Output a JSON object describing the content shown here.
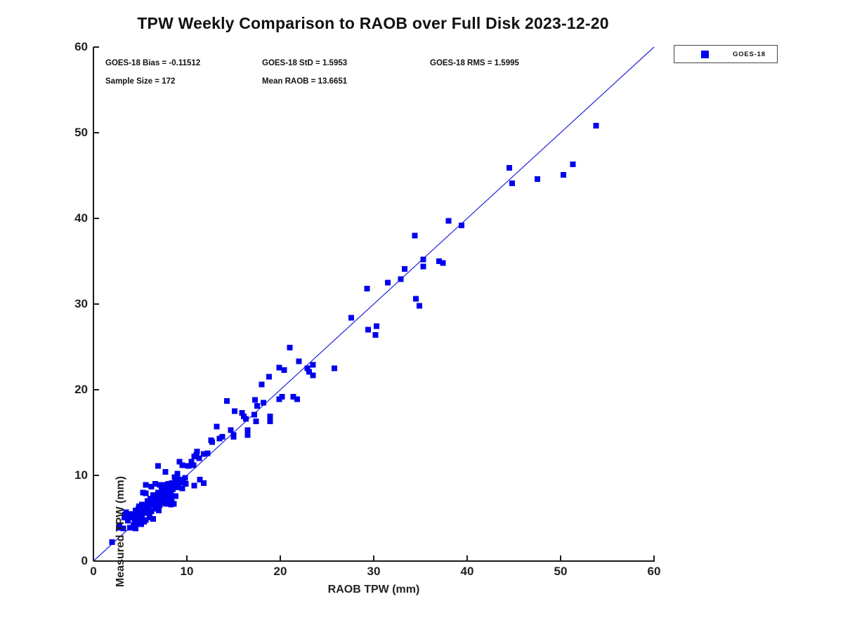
{
  "title": "TPW Weekly Comparison to RAOB over Full Disk 2023-12-20",
  "stats": {
    "bias": "GOES-18 Bias = -0.11512",
    "std": "GOES-18 StD = 1.5953",
    "rms": "GOES-18 RMS = 1.5995",
    "sample_size": "Sample Size = 172",
    "mean_raob": "Mean RAOB = 13.6651"
  },
  "legend": {
    "label": "GOES-18",
    "marker_color": "#0000ee"
  },
  "colors": {
    "marker": "#0000ee",
    "reference_line": "#2222dd",
    "axis": "#1a1a1a"
  },
  "chart_data": {
    "type": "scatter",
    "title": "TPW Weekly Comparison to RAOB over Full Disk 2023-12-20",
    "xlabel": "RAOB TPW (mm)",
    "ylabel": "Measured TPW (mm)",
    "xlim": [
      0,
      60
    ],
    "ylim": [
      0,
      60
    ],
    "xticks": [
      0,
      10,
      20,
      30,
      40,
      50,
      60
    ],
    "yticks": [
      0,
      10,
      20,
      30,
      40,
      50,
      60
    ],
    "grid": false,
    "legend_position": "outside-top-right",
    "annotations": [
      "GOES-18 Bias = -0.11512",
      "GOES-18 StD = 1.5953",
      "GOES-18 RMS = 1.5995",
      "Sample Size = 172",
      "Mean RAOB = 13.6651"
    ],
    "reference_line": {
      "label": "y = x",
      "from": [
        0,
        0
      ],
      "to": [
        60,
        60
      ],
      "color": "#2222dd"
    },
    "series": [
      {
        "name": "GOES-18",
        "marker": "filled-square",
        "color": "#0000ee",
        "sample_size": 172,
        "points": [
          [
            53.8,
            50.8
          ],
          [
            44.5,
            45.9
          ],
          [
            44.8,
            44.1
          ],
          [
            47.5,
            44.6
          ],
          [
            50.3,
            45.1
          ],
          [
            51.3,
            46.3
          ],
          [
            38.0,
            39.7
          ],
          [
            39.4,
            39.2
          ],
          [
            34.4,
            38.0
          ],
          [
            35.3,
            35.2
          ],
          [
            35.3,
            34.4
          ],
          [
            37.0,
            35.0
          ],
          [
            37.4,
            34.8
          ],
          [
            33.3,
            34.1
          ],
          [
            32.9,
            32.9
          ],
          [
            31.5,
            32.5
          ],
          [
            29.3,
            31.8
          ],
          [
            34.5,
            30.6
          ],
          [
            34.9,
            29.8
          ],
          [
            27.6,
            28.4
          ],
          [
            29.4,
            27.0
          ],
          [
            30.3,
            27.4
          ],
          [
            30.2,
            26.4
          ],
          [
            21.0,
            24.9
          ],
          [
            22.0,
            23.3
          ],
          [
            23.5,
            22.9
          ],
          [
            19.9,
            22.6
          ],
          [
            20.4,
            22.3
          ],
          [
            22.9,
            22.5
          ],
          [
            23.1,
            22.1
          ],
          [
            23.5,
            21.7
          ],
          [
            25.8,
            22.5
          ],
          [
            18.8,
            21.5
          ],
          [
            18.0,
            20.6
          ],
          [
            14.3,
            18.7
          ],
          [
            17.3,
            18.8
          ],
          [
            17.5,
            18.1
          ],
          [
            18.2,
            18.5
          ],
          [
            19.9,
            18.9
          ],
          [
            20.2,
            19.2
          ],
          [
            21.4,
            19.2
          ],
          [
            21.8,
            18.9
          ],
          [
            15.1,
            17.5
          ],
          [
            15.9,
            17.3
          ],
          [
            16.1,
            16.9
          ],
          [
            16.3,
            16.6
          ],
          [
            17.2,
            17.1
          ],
          [
            17.4,
            16.3
          ],
          [
            18.9,
            16.9
          ],
          [
            18.9,
            16.3
          ],
          [
            13.2,
            15.7
          ],
          [
            14.7,
            15.3
          ],
          [
            15.0,
            14.7
          ],
          [
            16.5,
            15.3
          ],
          [
            16.5,
            14.7
          ],
          [
            15.0,
            14.5
          ],
          [
            12.6,
            14.1
          ],
          [
            13.5,
            14.3
          ],
          [
            13.8,
            14.5
          ],
          [
            12.7,
            13.9
          ],
          [
            12.2,
            12.6
          ],
          [
            10.8,
            12.2
          ],
          [
            11.1,
            12.8
          ],
          [
            11.3,
            12.0
          ],
          [
            11.8,
            12.5
          ],
          [
            11.0,
            12.4
          ],
          [
            10.1,
            11.1
          ],
          [
            10.7,
            11.2
          ],
          [
            9.5,
            11.2
          ],
          [
            9.2,
            11.6
          ],
          [
            10.5,
            11.6
          ],
          [
            10.2,
            11.1
          ],
          [
            6.9,
            11.1
          ],
          [
            7.7,
            10.4
          ],
          [
            11.4,
            9.5
          ],
          [
            11.8,
            9.1
          ],
          [
            10.8,
            8.8
          ],
          [
            9.0,
            9.9
          ],
          [
            9.3,
            9.5
          ],
          [
            9.6,
            9.2
          ],
          [
            9.8,
            9.7
          ],
          [
            9.9,
            9.0
          ],
          [
            9.5,
            8.5
          ],
          [
            8.8,
            9.4
          ],
          [
            8.4,
            9.1
          ],
          [
            8.7,
            9.8
          ],
          [
            9.0,
            10.2
          ],
          [
            8.0,
            9.0
          ],
          [
            5.6,
            8.9
          ],
          [
            6.2,
            8.7
          ],
          [
            6.6,
            9.0
          ],
          [
            7.1,
            8.9
          ],
          [
            7.6,
            8.9
          ],
          [
            8.1,
            8.8
          ],
          [
            8.6,
            8.9
          ],
          [
            7.3,
            8.6
          ],
          [
            7.7,
            8.5
          ],
          [
            5.3,
            8.0
          ],
          [
            5.6,
            7.9
          ],
          [
            6.4,
            7.7
          ],
          [
            6.9,
            8.0
          ],
          [
            7.3,
            8.1
          ],
          [
            7.8,
            8.0
          ],
          [
            8.3,
            7.8
          ],
          [
            8.8,
            7.6
          ],
          [
            7.7,
            7.7
          ],
          [
            8.3,
            7.5
          ],
          [
            8.1,
            8.3
          ],
          [
            8.5,
            8.4
          ],
          [
            8.9,
            8.6
          ],
          [
            9.1,
            8.9
          ],
          [
            7.4,
            7.6
          ],
          [
            7.9,
            7.3
          ],
          [
            6.3,
            7.2
          ],
          [
            6.8,
            7.0
          ],
          [
            7.2,
            6.8
          ],
          [
            7.5,
            7.2
          ],
          [
            7.8,
            6.9
          ],
          [
            8.3,
            6.6
          ],
          [
            8.6,
            6.7
          ],
          [
            7.8,
            6.7
          ],
          [
            6.0,
            6.8
          ],
          [
            5.7,
            6.5
          ],
          [
            6.5,
            6.5
          ],
          [
            6.9,
            7.5
          ],
          [
            6.5,
            7.7
          ],
          [
            6.1,
            7.3
          ],
          [
            5.8,
            7.0
          ],
          [
            8.4,
            6.9
          ],
          [
            6.3,
            6.6
          ],
          [
            6.7,
            6.3
          ],
          [
            7.1,
            6.5
          ],
          [
            4.8,
            6.1
          ],
          [
            5.3,
            5.7
          ],
          [
            5.8,
            6.0
          ],
          [
            6.2,
            5.8
          ],
          [
            6.6,
            6.1
          ],
          [
            7.0,
            5.9
          ],
          [
            4.1,
            5.5
          ],
          [
            3.4,
            5.4
          ],
          [
            4.5,
            5.9
          ],
          [
            4.9,
            5.9
          ],
          [
            5.6,
            5.6
          ],
          [
            6.0,
            5.5
          ],
          [
            5.4,
            6.2
          ],
          [
            5.2,
            6.6
          ],
          [
            4.9,
            6.4
          ],
          [
            5.9,
            6.3
          ],
          [
            4.3,
            5.1
          ],
          [
            3.7,
            4.7
          ],
          [
            4.4,
            4.6
          ],
          [
            4.8,
            4.8
          ],
          [
            5.2,
            5.0
          ],
          [
            5.6,
            4.8
          ],
          [
            6.0,
            5.1
          ],
          [
            6.4,
            4.9
          ],
          [
            5.0,
            4.5
          ],
          [
            5.4,
            4.6
          ],
          [
            3.5,
            5.7
          ],
          [
            3.3,
            5.1
          ],
          [
            3.8,
            5.2
          ],
          [
            4.6,
            5.4
          ],
          [
            5.0,
            5.6
          ],
          [
            2.8,
            4.0
          ],
          [
            3.2,
            3.8
          ],
          [
            3.9,
            3.9
          ],
          [
            4.3,
            4.2
          ],
          [
            4.7,
            4.3
          ],
          [
            5.1,
            4.3
          ],
          [
            4.5,
            3.8
          ],
          [
            2.8,
            3.9
          ],
          [
            2.0,
            2.2
          ]
        ]
      }
    ]
  }
}
